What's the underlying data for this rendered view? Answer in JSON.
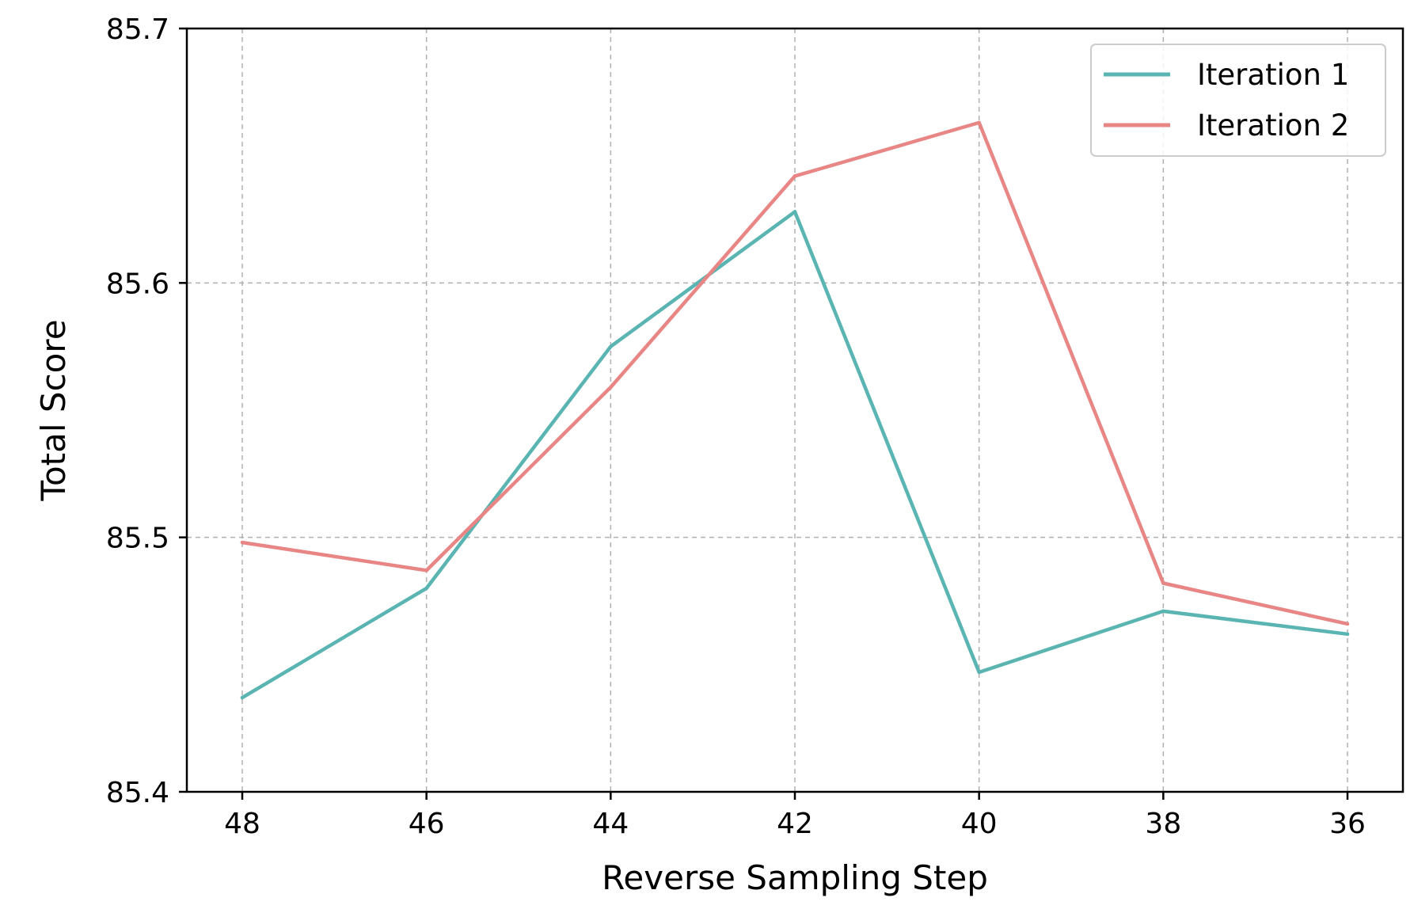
{
  "chart_data": {
    "type": "line",
    "xlabel": "Reverse Sampling Step",
    "ylabel": "Total Score",
    "categories": [
      "48",
      "46",
      "44",
      "42",
      "40",
      "38",
      "36"
    ],
    "x": [
      48,
      46,
      44,
      42,
      40,
      38,
      36
    ],
    "x_reversed": true,
    "ylim": [
      85.4,
      85.7
    ],
    "yticks": [
      "85.4",
      "85.5",
      "85.6",
      "85.7"
    ],
    "ytick_values": [
      85.4,
      85.5,
      85.6,
      85.7
    ],
    "grid": true,
    "legend_position": "top-right",
    "series": [
      {
        "name": "Iteration 1",
        "color": "#5ab5b2",
        "values": [
          85.437,
          85.48,
          85.575,
          85.628,
          85.447,
          85.471,
          85.462
        ]
      },
      {
        "name": "Iteration 2",
        "color": "#e88585",
        "values": [
          85.498,
          85.487,
          85.559,
          85.642,
          85.663,
          85.482,
          85.466
        ]
      }
    ]
  }
}
